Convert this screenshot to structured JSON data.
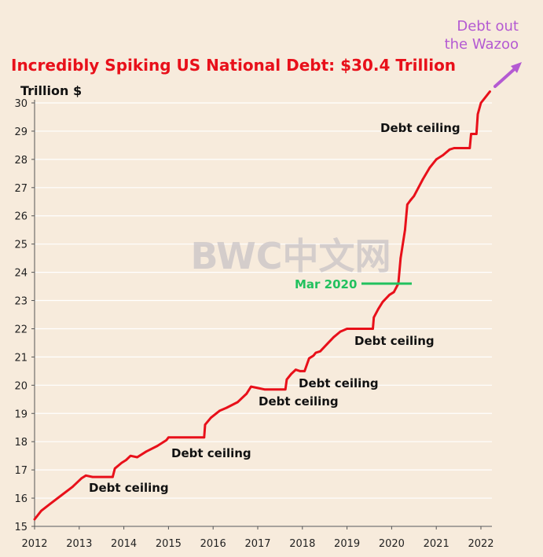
{
  "colors": {
    "background": "#f7ebdc",
    "series": "#e8101a",
    "title": "#e8101a",
    "mar_marker": "#22c15e",
    "wazoo": "#b45ad2",
    "watermark": "#c9c3c6",
    "grid": "#ffffff"
  },
  "chart_data": {
    "type": "line",
    "title": "Incredibly Spiking US National Debt: $30.4 Trillion",
    "ylabel": "Trillion $",
    "xlabel": "",
    "xlim": [
      2012,
      2022.35
    ],
    "ylim": [
      15,
      30.4
    ],
    "yticks": [
      15,
      16,
      17,
      18,
      19,
      20,
      21,
      22,
      23,
      24,
      25,
      26,
      27,
      28,
      29,
      30
    ],
    "xticks": [
      2012,
      2013,
      2014,
      2015,
      2016,
      2017,
      2018,
      2019,
      2020,
      2021,
      2022
    ],
    "grid": "horizontal",
    "series": [
      {
        "x": [
          2012.0,
          2012.15,
          2012.35,
          2012.6,
          2012.85,
          2013.05,
          2013.15,
          2013.3,
          2013.5,
          2013.75,
          2013.8,
          2013.95,
          2014.05,
          2014.15,
          2014.3,
          2014.5,
          2014.75,
          2014.95,
          2015.0,
          2015.15,
          2015.25,
          2015.5,
          2015.8,
          2015.82,
          2015.95,
          2016.15,
          2016.3,
          2016.55,
          2016.75,
          2016.85,
          2017.0,
          2017.15,
          2017.5,
          2017.62,
          2017.65,
          2017.75,
          2017.85,
          2017.95,
          2018.05,
          2018.15,
          2018.25,
          2018.3,
          2018.4,
          2018.55,
          2018.7,
          2018.85,
          2019.0,
          2019.15,
          2019.25,
          2019.5,
          2019.58,
          2019.6,
          2019.7,
          2019.8,
          2019.95,
          2020.05,
          2020.15,
          2020.2,
          2020.3,
          2020.35,
          2020.42,
          2020.5,
          2020.6,
          2020.7,
          2020.85,
          2021.0,
          2021.15,
          2021.3,
          2021.4,
          2021.45,
          2021.55,
          2021.75,
          2021.78,
          2021.9,
          2021.93,
          2022.0,
          2022.1,
          2022.2
        ],
        "values": [
          15.25,
          15.55,
          15.8,
          16.1,
          16.4,
          16.7,
          16.8,
          16.75,
          16.75,
          16.75,
          17.05,
          17.25,
          17.35,
          17.5,
          17.45,
          17.65,
          17.85,
          18.05,
          18.15,
          18.15,
          18.15,
          18.15,
          18.15,
          18.6,
          18.85,
          19.1,
          19.2,
          19.4,
          19.7,
          19.95,
          19.9,
          19.85,
          19.85,
          19.85,
          20.2,
          20.4,
          20.55,
          20.5,
          20.5,
          20.95,
          21.05,
          21.15,
          21.2,
          21.45,
          21.7,
          21.9,
          22.0,
          22.0,
          22.0,
          22.0,
          22.0,
          22.4,
          22.7,
          22.95,
          23.2,
          23.3,
          23.6,
          24.5,
          25.5,
          26.4,
          26.55,
          26.7,
          27.0,
          27.3,
          27.7,
          28.0,
          28.15,
          28.35,
          28.4,
          28.4,
          28.4,
          28.4,
          28.9,
          28.9,
          29.6,
          30.0,
          30.2,
          30.4
        ]
      }
    ],
    "annotations": [
      {
        "label": "Debt ceiling",
        "x": 2013.25,
        "y": 16.4
      },
      {
        "label": "Debt ceiling",
        "x": 2015.1,
        "y": 17.6
      },
      {
        "label": "Debt ceiling",
        "x": 2017.05,
        "y": 19.45
      },
      {
        "label": "Debt ceiling",
        "x": 2017.95,
        "y": 20.1
      },
      {
        "label": "Debt ceiling",
        "x": 2019.2,
        "y": 21.55
      },
      {
        "label": "Debt ceiling",
        "x": 2019.8,
        "y": 29.15
      },
      {
        "label": "Mar 2020",
        "x": 2018.85,
        "y": 23.6
      },
      {
        "label": "Debt out",
        "x": 2021.9,
        "y": 30.4
      },
      {
        "label": "the Wazoo",
        "x": 2021.9,
        "y": 30.4
      }
    ]
  }
}
